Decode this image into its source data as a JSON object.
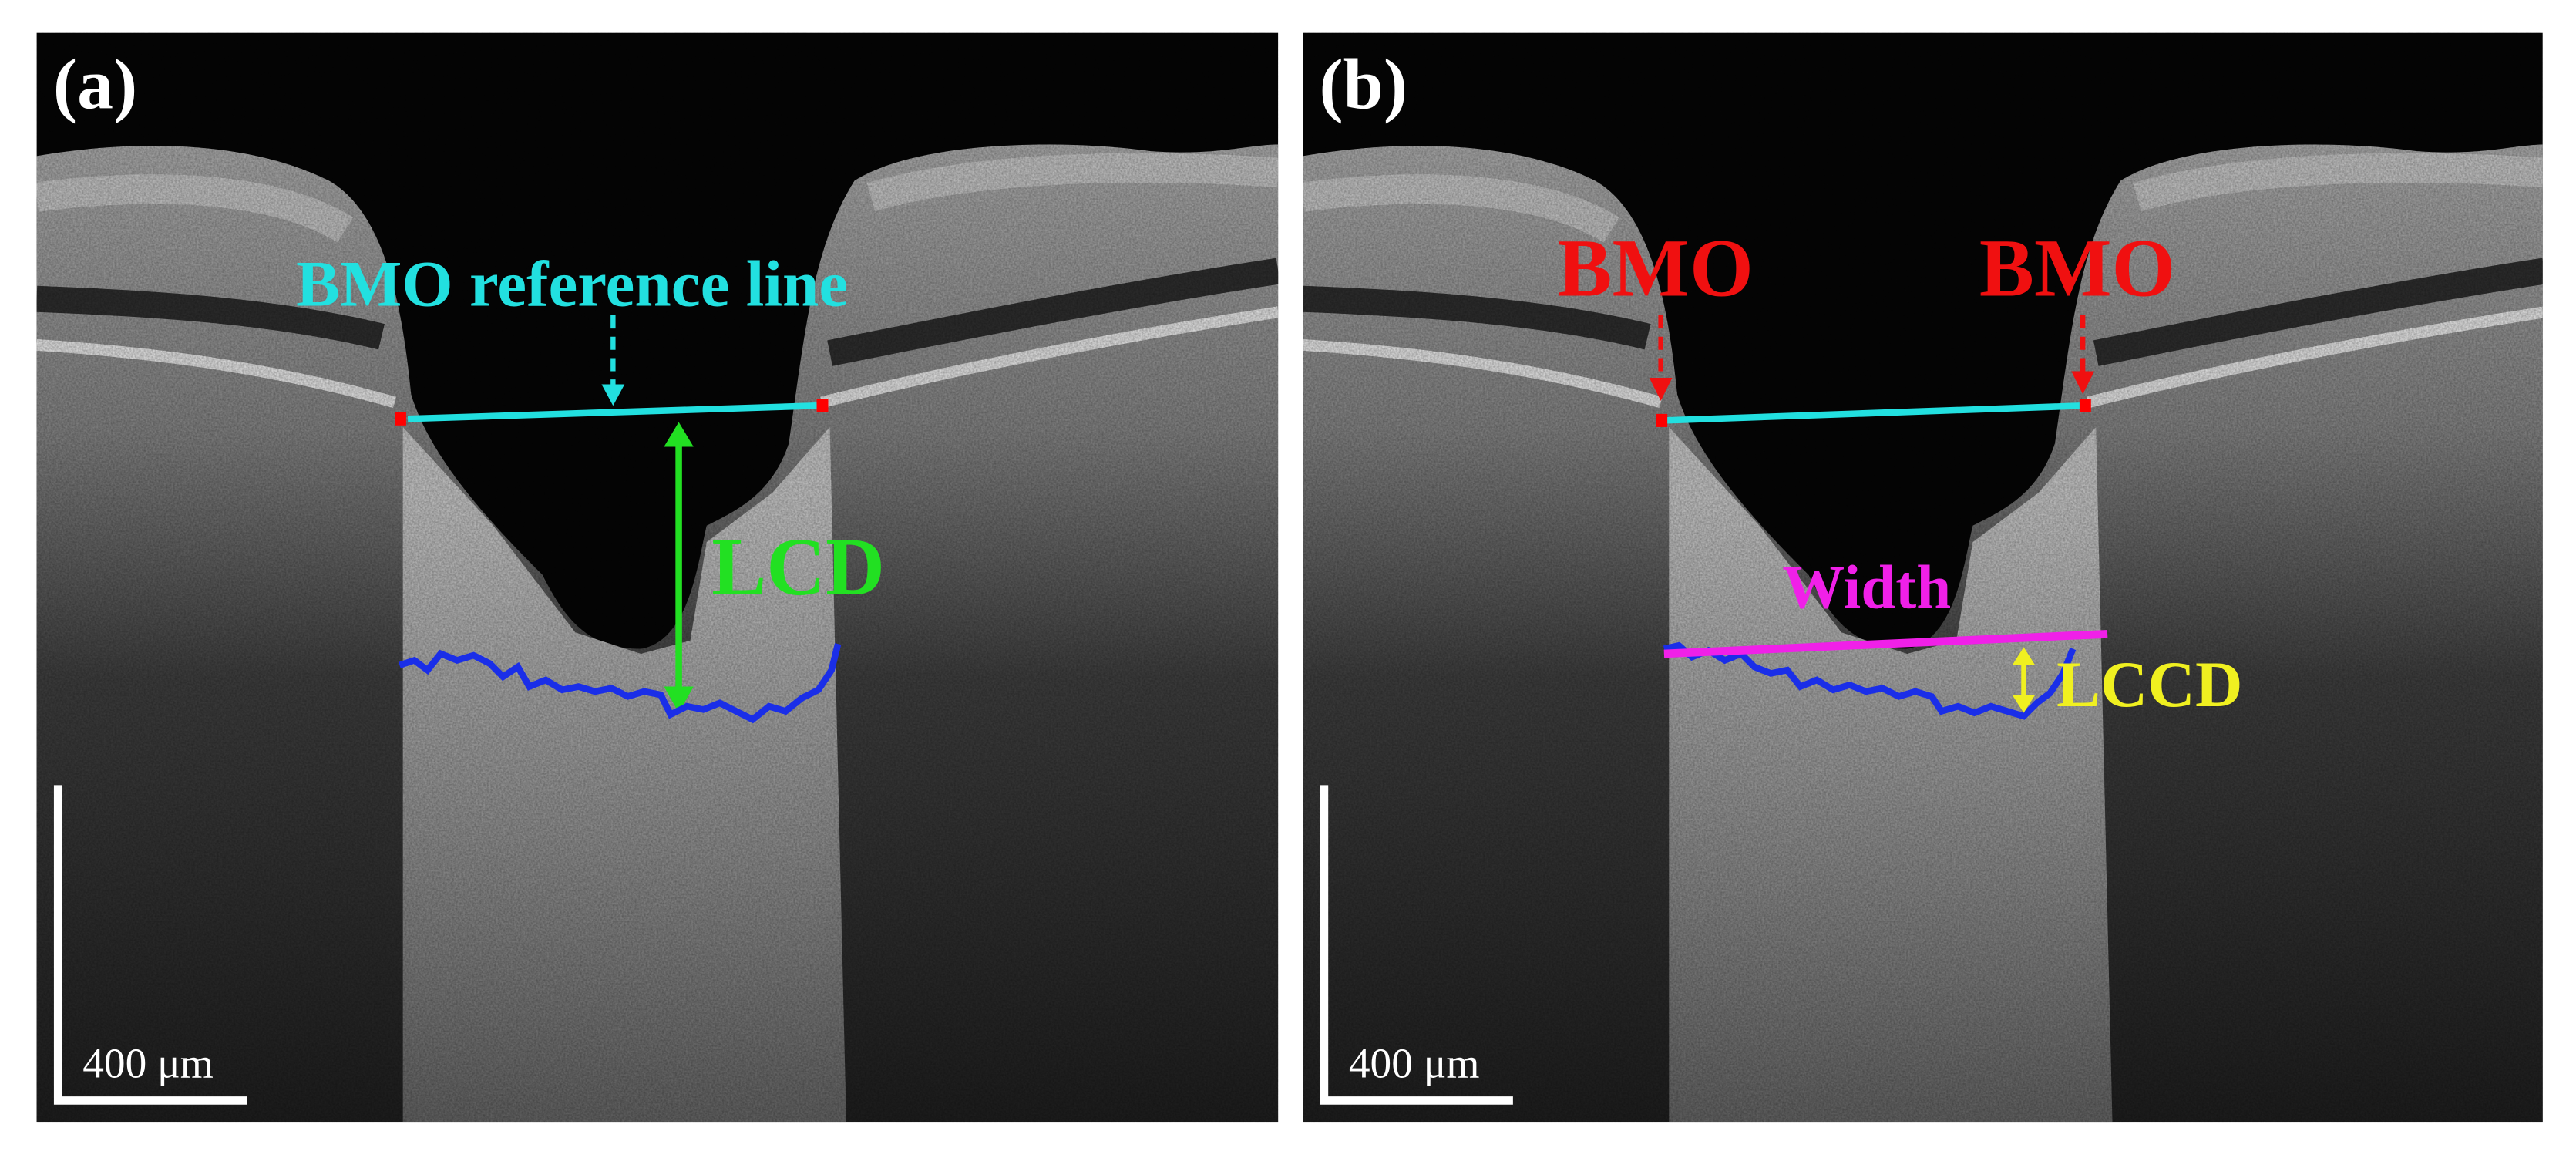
{
  "panels": [
    {
      "label": "(a)",
      "scale_bar": "400 μm",
      "annotations": {
        "reference_line": "BMO reference line",
        "depth": "LCD"
      }
    },
    {
      "label": "(b)",
      "scale_bar": "400 μm",
      "annotations": {
        "bmo_left": "BMO",
        "bmo_right": "BMO",
        "width": "Width",
        "depth": "LCCD"
      }
    }
  ]
}
